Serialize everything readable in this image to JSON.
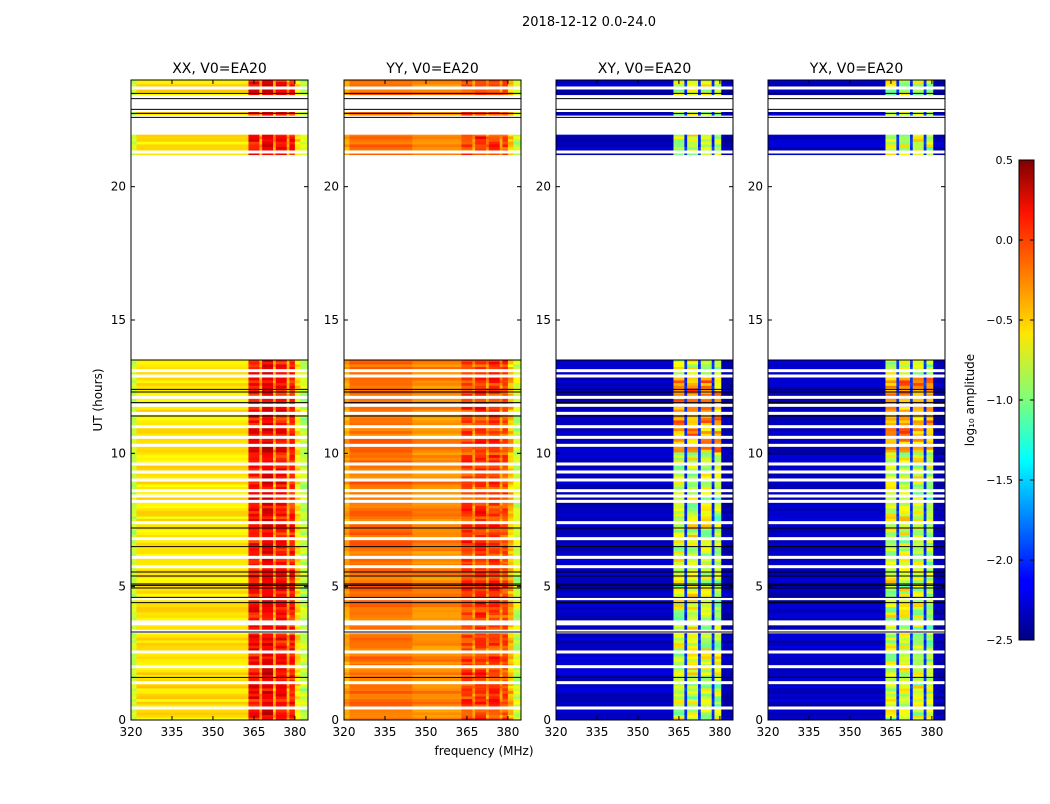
{
  "chart_data": {
    "type": "heatmap",
    "suptitle": "2018-12-12 0.0-24.0",
    "xlabel": "frequency (MHz)",
    "ylabel": "UT (hours)",
    "xlim": [
      320,
      384.8
    ],
    "ylim": [
      0,
      24
    ],
    "xticks": [
      "320",
      "335",
      "350",
      "365",
      "380"
    ],
    "xtick_values": [
      320,
      335,
      350,
      365,
      380
    ],
    "yticks": [
      "0",
      "5",
      "10",
      "15",
      "20"
    ],
    "ytick_values": [
      0,
      5,
      10,
      15,
      20
    ],
    "colorbar": {
      "label": "log₁₀ amplitude",
      "range": [
        -2.5,
        0.5
      ],
      "colormap": "jet",
      "ticks": [
        "−2.5",
        "−2.0",
        "−1.5",
        "−1.0",
        "−0.5",
        "0.0",
        "0.5"
      ],
      "tick_values": [
        -2.5,
        -2.0,
        -1.5,
        -1.0,
        -0.5,
        0.0,
        0.5
      ]
    },
    "time_segments_hours": [
      [
        0,
        3.25
      ],
      [
        3.4,
        3.55
      ],
      [
        3.75,
        13.5
      ],
      [
        21.2,
        21.95
      ],
      [
        22.68,
        22.8
      ],
      [
        23.45,
        24
      ]
    ],
    "flagged_rows_hours": [
      0.45,
      1.4,
      2.0,
      2.55,
      4.55,
      5.75,
      6.1,
      6.8,
      7.4,
      8.2,
      8.4,
      8.6,
      9.0,
      9.3,
      9.6,
      10.3,
      10.6,
      11.0,
      11.5,
      11.8,
      12.1,
      12.9,
      13.1,
      21.3,
      23.7
    ],
    "black_rows_hours": [
      1.6,
      3.3,
      4.4,
      4.6,
      4.95,
      5.05,
      5.1,
      5.4,
      5.55,
      6.5,
      7.2,
      11.4,
      11.9,
      12.3,
      12.4,
      13.5,
      22.6,
      22.75,
      22.9,
      23.3,
      23.5
    ],
    "panels": [
      {
        "title": "XX, V0=EA20",
        "bands": [
          [
            320,
            322,
            -0.8
          ],
          [
            322,
            363,
            -0.55
          ],
          [
            363,
            367,
            0.05
          ],
          [
            367,
            368,
            -0.4
          ],
          [
            368,
            372,
            0.15
          ],
          [
            372,
            373,
            -0.4
          ],
          [
            373,
            377,
            0.05
          ],
          [
            377,
            378,
            -0.4
          ],
          [
            378,
            380,
            0.0
          ],
          [
            380,
            382,
            -0.6
          ],
          [
            382,
            384.8,
            -0.85
          ]
        ]
      },
      {
        "title": "YY, V0=EA20",
        "bands": [
          [
            320,
            322,
            -0.35
          ],
          [
            322,
            345,
            -0.2
          ],
          [
            345,
            363,
            -0.28
          ],
          [
            363,
            367,
            -0.1
          ],
          [
            367,
            368,
            -0.3
          ],
          [
            368,
            372,
            -0.05
          ],
          [
            372,
            373,
            -0.3
          ],
          [
            373,
            377,
            -0.08
          ],
          [
            377,
            378,
            -0.3
          ],
          [
            378,
            380,
            -0.1
          ],
          [
            380,
            382,
            -0.45
          ],
          [
            382,
            384.8,
            -0.8
          ]
        ]
      },
      {
        "title": "XY, V0=EA20",
        "bands": [
          [
            320,
            363,
            -2.3
          ],
          [
            363,
            367,
            -0.85
          ],
          [
            367,
            368,
            -2.0
          ],
          [
            368,
            372,
            -0.8
          ],
          [
            372,
            373,
            -2.0
          ],
          [
            373,
            377,
            -0.85
          ],
          [
            377,
            378,
            -2.0
          ],
          [
            378,
            380.5,
            -0.9
          ],
          [
            380.5,
            384.8,
            -2.35
          ]
        ]
      },
      {
        "title": "YX, V0=EA20",
        "bands": [
          [
            320,
            363,
            -2.3
          ],
          [
            363,
            367,
            -0.85
          ],
          [
            367,
            368,
            -2.0
          ],
          [
            368,
            372,
            -0.8
          ],
          [
            372,
            373,
            -2.0
          ],
          [
            373,
            377,
            -0.85
          ],
          [
            377,
            378,
            -2.0
          ],
          [
            378,
            380.5,
            -0.9
          ],
          [
            380.5,
            384.8,
            -2.35
          ]
        ]
      }
    ]
  }
}
